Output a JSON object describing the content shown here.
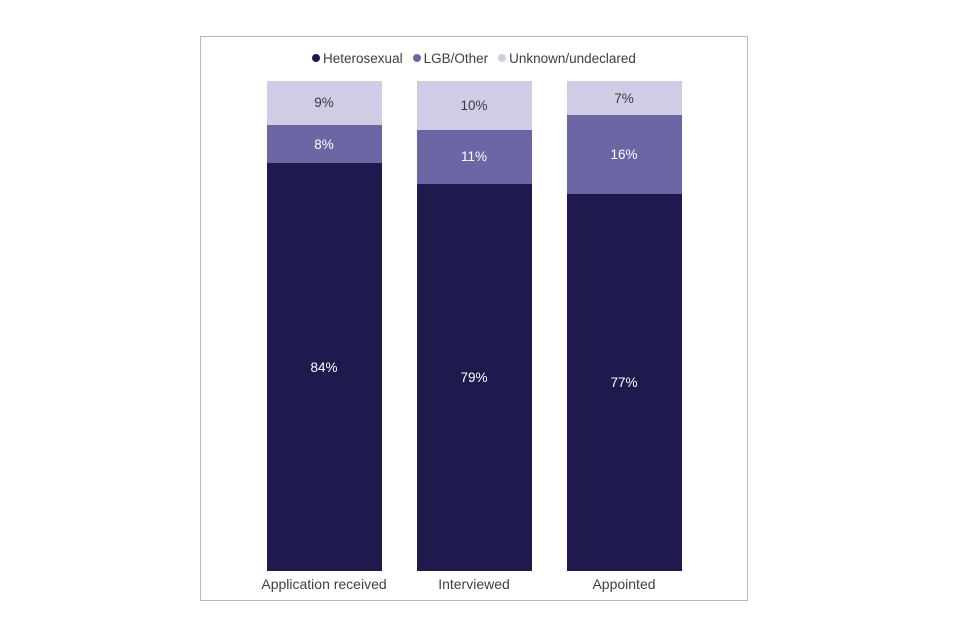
{
  "chart_data": {
    "type": "bar",
    "stacked": true,
    "title": "",
    "xlabel": "",
    "ylabel": "",
    "ylim": [
      0,
      100
    ],
    "grid": false,
    "legend_position": "top",
    "categories": [
      "Application received",
      "Interviewed",
      "Appointed"
    ],
    "series": [
      {
        "name": "Heterosexual",
        "color": "#1f1a4e",
        "values": [
          84,
          79,
          77
        ],
        "labels": [
          "84%",
          "79%",
          "77%"
        ],
        "label_text_color": "#ffffff"
      },
      {
        "name": "LGB/Other",
        "color": "#6b67a5",
        "values": [
          8,
          11,
          16
        ],
        "labels": [
          "8%",
          "11%",
          "16%"
        ],
        "label_text_color": "#ffffff"
      },
      {
        "name": "Unknown/undeclared",
        "color": "#cecde5",
        "values": [
          9,
          10,
          7
        ],
        "labels": [
          "9%",
          "10%",
          "7%"
        ],
        "label_text_color": "#3a3a3a"
      }
    ]
  }
}
